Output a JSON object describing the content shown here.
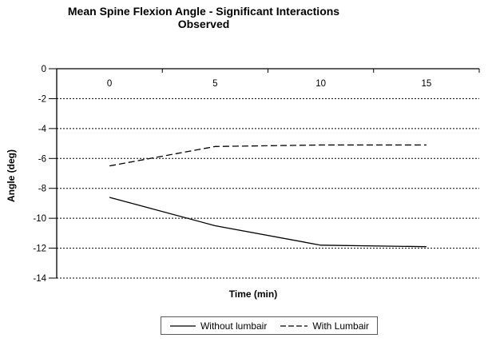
{
  "title": "Mean Spine Flexion Angle - Significant Interactions Observed",
  "chart_data": {
    "type": "line",
    "x": [
      0,
      5,
      10,
      15
    ],
    "xlabel": "Time (min)",
    "ylabel": "Angle (deg)",
    "ylim": [
      -14,
      0
    ],
    "yticks": [
      0,
      -2,
      -4,
      -6,
      -8,
      -10,
      -12,
      -14
    ],
    "grid": "horizontal dashed gridlines at each y tick",
    "legend_position": "bottom-center boxed",
    "series": [
      {
        "name": "Without lumbair",
        "style": "solid",
        "color": "#000000",
        "values": [
          -8.6,
          -10.5,
          -11.8,
          -11.9
        ]
      },
      {
        "name": "With Lumbair",
        "style": "dashed",
        "color": "#000000",
        "values": [
          -6.5,
          -5.2,
          -5.1,
          -5.1
        ]
      }
    ]
  },
  "colors": {
    "background": "#ffffff",
    "axis": "#000000",
    "grid": "#000000",
    "text": "#000000",
    "legend_border": "#595959"
  }
}
